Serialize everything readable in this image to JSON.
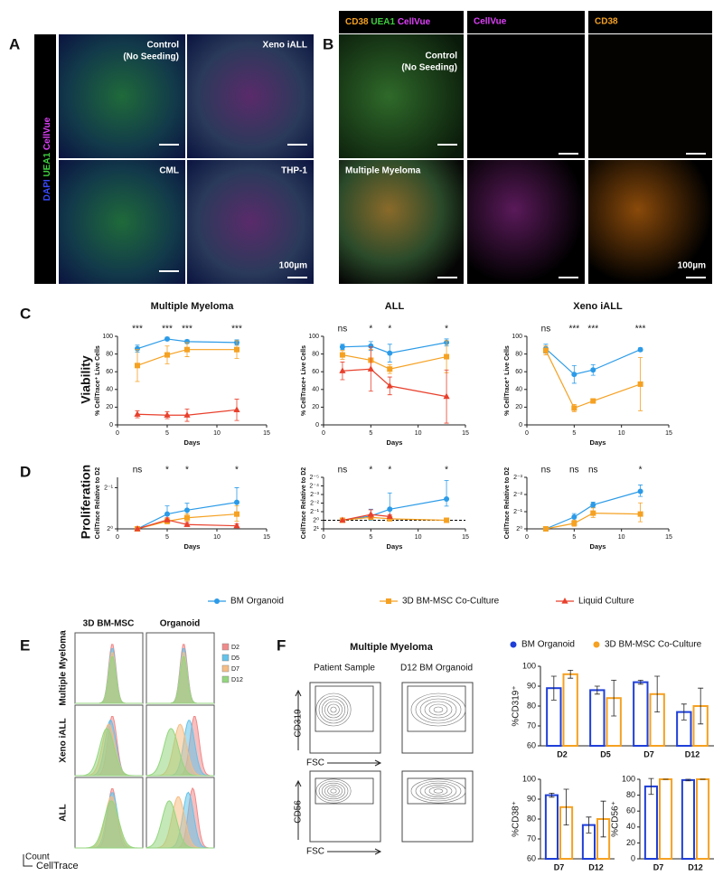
{
  "panel_labels": [
    "A",
    "B",
    "C",
    "D",
    "E",
    "F"
  ],
  "panel_a": {
    "channels": [
      "DAPI",
      "UEA1",
      "CellVue"
    ],
    "tiles": [
      [
        "Control",
        "(No Seeding)"
      ],
      [
        "Xeno iALL"
      ],
      [
        "CML"
      ],
      [
        "THP-1"
      ]
    ],
    "scale_bar": "100µm"
  },
  "panel_b": {
    "columns": [
      [
        "CD38",
        "UEA1",
        "CellVue"
      ],
      [
        "CellVue"
      ],
      [
        "CD38"
      ]
    ],
    "rows": [
      [
        "Control",
        "(No Seeding)"
      ],
      [
        "Multiple Myeloma"
      ]
    ],
    "scale_bar": "100µm"
  },
  "row_labels": [
    "Viability",
    "Proliferation"
  ],
  "panel_e": {
    "columns": [
      "3D BM-MSC",
      "Organoid"
    ],
    "rows": [
      "Multiple Myeloma",
      "Xeno iALL",
      "ALL"
    ],
    "legend": [
      {
        "name": "D2",
        "color": "#f08a8a"
      },
      {
        "name": "D5",
        "color": "#63c3ea"
      },
      {
        "name": "D7",
        "color": "#f5bd84"
      },
      {
        "name": "D12",
        "color": "#93d67e"
      }
    ],
    "y_axis": "Count",
    "x_axis": "CellTrace"
  },
  "panel_f_flow": {
    "title": "Multiple Myeloma",
    "columns": [
      "Patient Sample",
      "D12 BM Organoid"
    ],
    "rows": [
      "CD319",
      "CD56"
    ],
    "x_axis": "FSC"
  },
  "chart_data": [
    {
      "type": "line",
      "title": "Multiple Myeloma",
      "x_label": "Days",
      "y_label": "% CellTrace⁺ Live Cells",
      "xlim": [
        0,
        15
      ],
      "xticks": [
        0,
        5,
        10,
        15
      ],
      "ylim": [
        0,
        100
      ],
      "yticks": [
        0,
        20,
        40,
        60,
        80,
        100
      ],
      "annotations": [
        {
          "x": 2,
          "text": "***"
        },
        {
          "x": 5,
          "text": "***"
        },
        {
          "x": 7,
          "text": "***"
        },
        {
          "x": 12,
          "text": "***"
        }
      ],
      "series": [
        {
          "name": "BM Organoid",
          "color": "#2b9be8",
          "marker": "circle",
          "x": [
            2,
            5,
            7,
            12
          ],
          "values": [
            86,
            97,
            94,
            93
          ],
          "errors": [
            4,
            2,
            2,
            3
          ]
        },
        {
          "name": "3D BM-MSC Co-Culture",
          "color": "#f5a122",
          "marker": "square",
          "x": [
            2,
            5,
            7,
            12
          ],
          "values": [
            67,
            79,
            85,
            85
          ],
          "errors": [
            18,
            10,
            8,
            10
          ]
        },
        {
          "name": "Liquid Culture",
          "color": "#e8402c",
          "marker": "triangle",
          "x": [
            2,
            5,
            7,
            12
          ],
          "values": [
            12,
            11,
            11,
            17
          ],
          "errors": [
            4,
            4,
            7,
            12
          ]
        }
      ]
    },
    {
      "type": "line",
      "title": "ALL",
      "x_label": "Days",
      "y_label": "% CellTrace+ Live Cells",
      "xlim": [
        0,
        15
      ],
      "xticks": [
        0,
        5,
        10,
        15
      ],
      "ylim": [
        0,
        100
      ],
      "yticks": [
        0,
        20,
        40,
        60,
        80,
        100
      ],
      "annotations": [
        {
          "x": 2,
          "text": "ns"
        },
        {
          "x": 5,
          "text": "*"
        },
        {
          "x": 7,
          "text": "*"
        },
        {
          "x": 13,
          "text": "*"
        }
      ],
      "series": [
        {
          "color": "#2b9be8",
          "marker": "circle",
          "x": [
            2,
            5,
            7,
            13
          ],
          "values": [
            88,
            89,
            81,
            93
          ],
          "errors": [
            3,
            5,
            10,
            4
          ]
        },
        {
          "color": "#f5a122",
          "marker": "square",
          "x": [
            2,
            5,
            7,
            13
          ],
          "values": [
            79,
            73,
            63,
            77
          ],
          "errors": [
            5,
            12,
            5,
            18
          ]
        },
        {
          "color": "#e8402c",
          "marker": "triangle",
          "x": [
            2,
            5,
            7,
            13
          ],
          "values": [
            61,
            63,
            44,
            32
          ],
          "errors": [
            10,
            25,
            10,
            30
          ]
        }
      ]
    },
    {
      "type": "line",
      "title": "Xeno iALL",
      "x_label": "Days",
      "y_label": "% CellTrace⁺ Live Cells",
      "xlim": [
        0,
        15
      ],
      "xticks": [
        0,
        5,
        10,
        15
      ],
      "ylim": [
        0,
        100
      ],
      "yticks": [
        0,
        20,
        40,
        60,
        80,
        100
      ],
      "annotations": [
        {
          "x": 2,
          "text": "ns"
        },
        {
          "x": 5,
          "text": "***"
        },
        {
          "x": 7,
          "text": "***"
        },
        {
          "x": 12,
          "text": "***"
        }
      ],
      "series": [
        {
          "color": "#2b9be8",
          "marker": "circle",
          "x": [
            2,
            5,
            7,
            12
          ],
          "values": [
            86,
            57,
            62,
            85
          ],
          "errors": [
            5,
            10,
            6,
            2
          ]
        },
        {
          "color": "#f5a122",
          "marker": "square",
          "x": [
            2,
            5,
            7,
            12
          ],
          "values": [
            84,
            19,
            27,
            46
          ],
          "errors": [
            5,
            4,
            2,
            30
          ]
        }
      ]
    },
    {
      "type": "line",
      "log_scale": true,
      "x_label": "Days",
      "y_label": "CellTrace Relative to D2",
      "xlim": [
        0,
        15
      ],
      "xticks": [
        0,
        5,
        10,
        15
      ],
      "ylim": [
        1,
        0.42
      ],
      "yticks": [
        {
          "value": 1,
          "label": "2⁰"
        },
        {
          "value": 0.5,
          "label": "2⁻¹"
        }
      ],
      "annotations": [
        {
          "x": 2,
          "text": "ns"
        },
        {
          "x": 5,
          "text": "*"
        },
        {
          "x": 7,
          "text": "*"
        },
        {
          "x": 12,
          "text": "*"
        }
      ],
      "series": [
        {
          "color": "#2b9be8",
          "marker": "circle",
          "x": [
            2,
            5,
            7,
            12
          ],
          "values": [
            1,
            0.78,
            0.73,
            0.64
          ],
          "errors": [
            0,
            0.1,
            0.08,
            0.14
          ]
        },
        {
          "color": "#f5a122",
          "marker": "square",
          "x": [
            2,
            5,
            7,
            12
          ],
          "values": [
            1,
            0.88,
            0.83,
            0.78
          ],
          "errors": [
            0,
            0.04,
            0.05,
            0.1
          ]
        },
        {
          "color": "#e8402c",
          "marker": "triangle",
          "x": [
            2,
            5,
            7,
            12
          ],
          "values": [
            1,
            0.86,
            0.93,
            0.95
          ],
          "errors": [
            0,
            0.03,
            0.03,
            0.03
          ]
        }
      ]
    },
    {
      "type": "line",
      "log_scale": true,
      "x_label": "Days",
      "y_label": "CellTrace Relative to D2",
      "xlim": [
        0,
        15
      ],
      "xticks": [
        0,
        5,
        10,
        15
      ],
      "ylim": [
        2,
        0.03125
      ],
      "reference_line": 1,
      "yticks": [
        {
          "value": 2,
          "label": "2¹"
        },
        {
          "value": 1,
          "label": "2⁰"
        },
        {
          "value": 0.5,
          "label": "2⁻¹"
        },
        {
          "value": 0.25,
          "label": "2⁻²"
        },
        {
          "value": 0.125,
          "label": "2⁻³"
        },
        {
          "value": 0.0625,
          "label": "2⁻⁴"
        },
        {
          "value": 0.03125,
          "label": "2⁻⁵"
        }
      ],
      "annotations": [
        {
          "x": 2,
          "text": "ns"
        },
        {
          "x": 5,
          "text": "*"
        },
        {
          "x": 7,
          "text": "*"
        },
        {
          "x": 13,
          "text": "*"
        }
      ],
      "series": [
        {
          "color": "#2b9be8",
          "marker": "circle",
          "x": [
            2,
            5,
            7,
            13
          ],
          "values": [
            1,
            0.71,
            0.41,
            0.18
          ],
          "errors": [
            0,
            0.3,
            0.3,
            0.14
          ]
        },
        {
          "color": "#f5a122",
          "marker": "square",
          "x": [
            2,
            5,
            7,
            13
          ],
          "values": [
            1,
            0.79,
            0.89,
            1
          ],
          "errors": [
            0,
            0.15,
            0.1,
            0.15
          ]
        },
        {
          "color": "#e8402c",
          "marker": "triangle",
          "x": [
            2,
            5,
            7
          ],
          "values": [
            1,
            0.63,
            0.74
          ],
          "errors": [
            0,
            0.2,
            0.1
          ]
        }
      ]
    },
    {
      "type": "line",
      "log_scale": true,
      "x_label": "Days",
      "y_label": "CellTrace Relative to D2",
      "xlim": [
        0,
        15
      ],
      "xticks": [
        0,
        5,
        10,
        15
      ],
      "ylim": [
        1,
        0.125
      ],
      "yticks": [
        {
          "value": 1,
          "label": "2⁰"
        },
        {
          "value": 0.5,
          "label": "2⁻¹"
        },
        {
          "value": 0.25,
          "label": "2⁻²"
        },
        {
          "value": 0.125,
          "label": "2⁻³"
        }
      ],
      "annotations": [
        {
          "x": 2,
          "text": "ns"
        },
        {
          "x": 5,
          "text": "ns"
        },
        {
          "x": 7,
          "text": "ns"
        },
        {
          "x": 12,
          "text": "*"
        }
      ],
      "series": [
        {
          "color": "#2b9be8",
          "marker": "circle",
          "x": [
            2,
            5,
            7,
            12
          ],
          "values": [
            1,
            0.62,
            0.38,
            0.22
          ],
          "errors": [
            0,
            0.08,
            0.04,
            0.05
          ]
        },
        {
          "color": "#f5a122",
          "marker": "square",
          "x": [
            2,
            5,
            7,
            12
          ],
          "values": [
            1,
            0.8,
            0.53,
            0.55
          ],
          "errors": [
            0,
            0.1,
            0.1,
            0.2
          ]
        }
      ]
    },
    {
      "type": "bar",
      "y_label": "%CD319⁺",
      "categories": [
        "D2",
        "D5",
        "D7",
        "D12"
      ],
      "ylim": [
        60,
        100
      ],
      "yticks": [
        60,
        70,
        80,
        90,
        100
      ],
      "series": [
        {
          "name": "BM Organoid",
          "color": "#1f3fd8",
          "values": [
            89,
            88,
            92,
            77
          ],
          "errors": [
            6,
            2,
            1,
            4
          ]
        },
        {
          "name": "3D BM-MSC Co-Culture",
          "color": "#f5a122",
          "values": [
            96,
            84,
            86,
            80
          ],
          "errors": [
            2,
            9,
            9,
            9
          ]
        }
      ]
    },
    {
      "type": "bar",
      "y_label": "%CD38⁺",
      "categories": [
        "D7",
        "D12"
      ],
      "ylim": [
        60,
        100
      ],
      "yticks": [
        60,
        70,
        80,
        90,
        100
      ],
      "series": [
        {
          "color": "#1f3fd8",
          "values": [
            92,
            77
          ],
          "errors": [
            1,
            4
          ]
        },
        {
          "color": "#f5a122",
          "values": [
            86,
            80
          ],
          "errors": [
            9,
            9
          ]
        }
      ]
    },
    {
      "type": "bar",
      "y_label": "%CD56⁺",
      "categories": [
        "D7",
        "D12"
      ],
      "ylim": [
        0,
        100
      ],
      "yticks": [
        0,
        20,
        40,
        60,
        80,
        100
      ],
      "series": [
        {
          "color": "#1f3fd8",
          "values": [
            91,
            99
          ],
          "errors": [
            10,
            1
          ]
        },
        {
          "color": "#f5a122",
          "values": [
            100,
            100
          ],
          "errors": [
            0,
            0
          ]
        }
      ]
    }
  ]
}
